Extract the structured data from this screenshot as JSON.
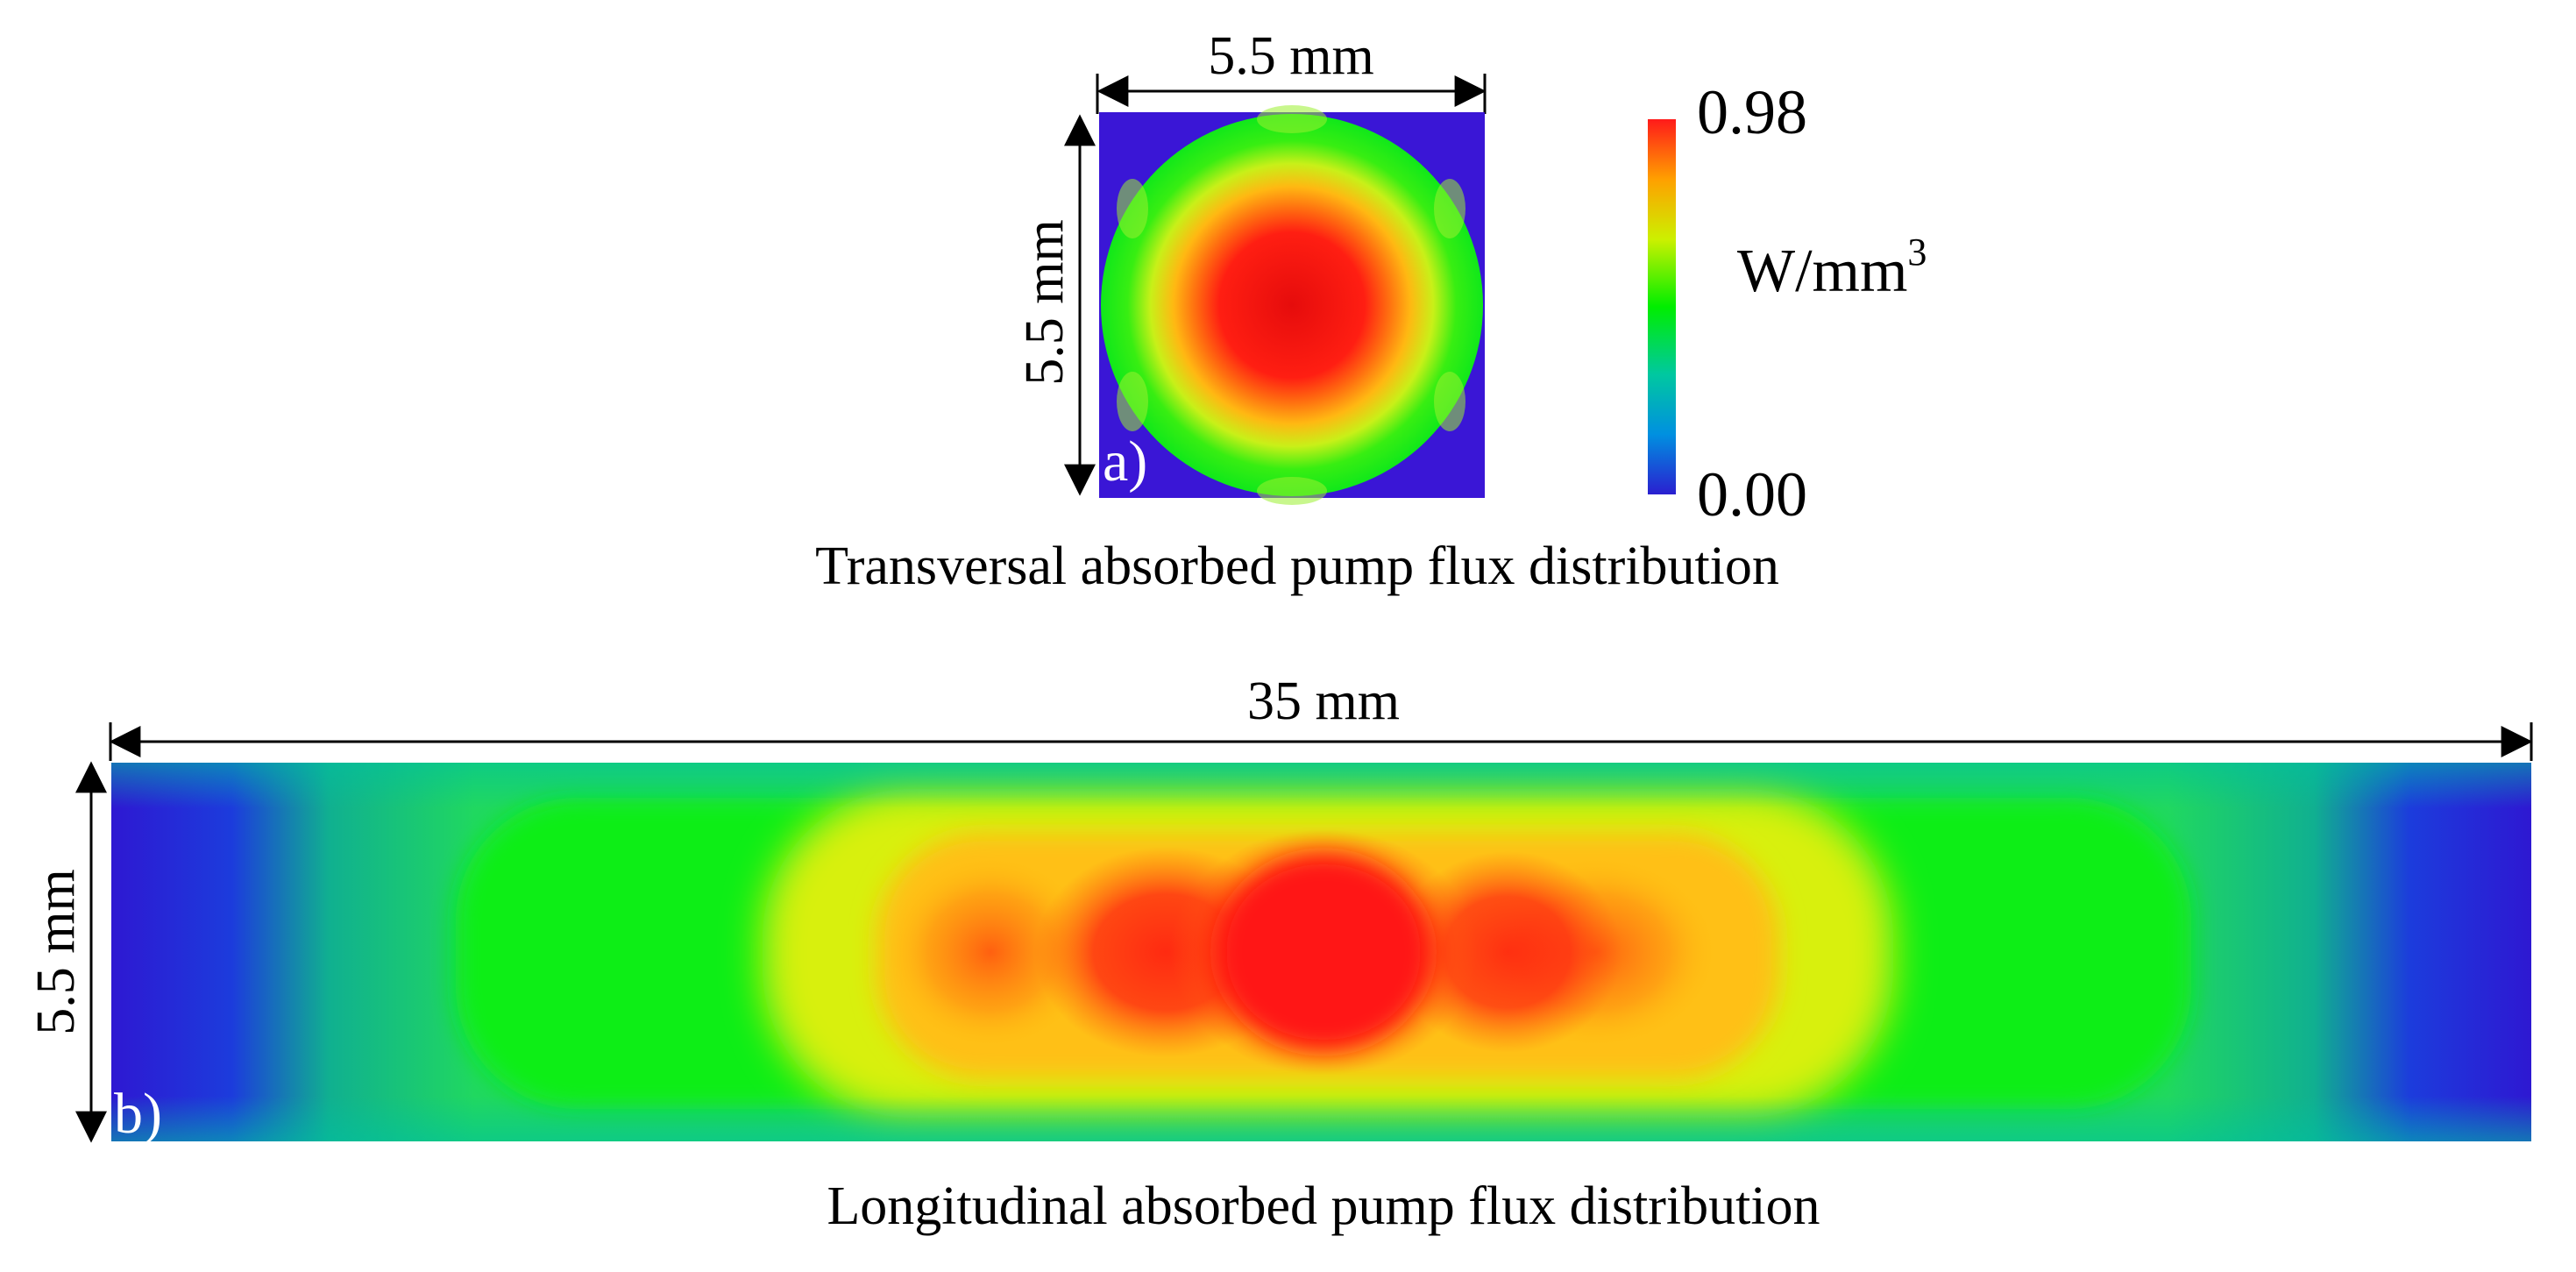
{
  "panel_a": {
    "label": "a)",
    "width_dim": "5.5 mm",
    "height_dim": "5.5 mm",
    "caption": "Transversal absorbed pump flux distribution"
  },
  "colorbar": {
    "max_label": "0.98",
    "min_label": "0.00",
    "unit": "W/mm",
    "unit_exponent": "3",
    "colors": [
      "#2a1fd0",
      "#0090e0",
      "#00c8a0",
      "#00ee00",
      "#ccf000",
      "#ffa000",
      "#ff1a1a"
    ]
  },
  "panel_b": {
    "label": "b)",
    "width_dim": "35 mm",
    "height_dim": "5.5 mm",
    "caption": "Longitudinal absorbed pump flux distribution"
  },
  "heat_colors": {
    "background": "#3a16d6",
    "green": "#00ee10",
    "yellow": "#d8f010",
    "orange": "#ff8010",
    "red": "#ff1a1a"
  }
}
